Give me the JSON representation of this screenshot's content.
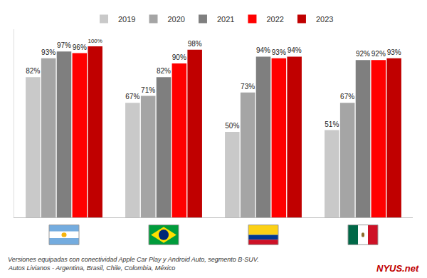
{
  "chart_data": {
    "type": "bar",
    "categories": [
      null,
      null,
      null,
      null
    ],
    "series": [
      {
        "name": "2019",
        "color": "#c9c9c9",
        "values": [
          82,
          67,
          50,
          51
        ],
        "value_labels": [
          "82%",
          "67%",
          "50%",
          "51%"
        ]
      },
      {
        "name": "2020",
        "color": "#a5a5a5",
        "values": [
          93,
          71,
          73,
          67
        ],
        "value_labels": [
          "93%",
          "71%",
          "73%",
          "67%"
        ]
      },
      {
        "name": "2021",
        "color": "#7f7f7f",
        "values": [
          97,
          82,
          94,
          92
        ],
        "value_labels": [
          "97%",
          "82%",
          "94%",
          "92%"
        ]
      },
      {
        "name": "2022",
        "color": "#ff0000",
        "values": [
          96,
          90,
          93,
          92
        ],
        "value_labels": [
          "96%",
          "90%",
          "93%",
          "92%"
        ]
      },
      {
        "name": "2023",
        "color": "#c00000",
        "values": [
          100,
          98,
          94,
          93
        ],
        "value_labels": [
          "100%",
          "98%",
          "94%",
          "93%"
        ]
      }
    ],
    "ylim": [
      0,
      110
    ],
    "yticks": [],
    "grid": false,
    "legend": "top",
    "data_labels": true,
    "tick_labels": false,
    "annotations": [
      "Versiones equipadas con conectividad Apple Car Play y Android Auto, segmento B-SUV.",
      "Autos Livianos - Argentina, Brasil, Chile, Colombia, México",
      "NYUS.net"
    ]
  }
}
